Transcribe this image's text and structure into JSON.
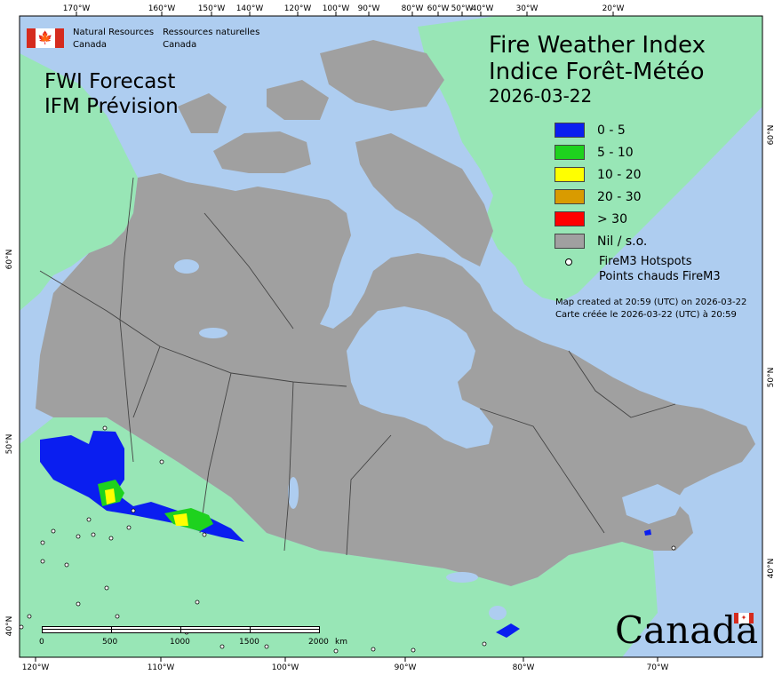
{
  "signature": {
    "en_line1": "Natural Resources",
    "en_line2": "Canada",
    "fr_line1": "Ressources naturelles",
    "fr_line2": "Canada",
    "flag_icon": "maple-leaf-icon"
  },
  "fwi_forecast": {
    "line1": "FWI Forecast",
    "line2": "IFM Prévision"
  },
  "title": {
    "line1": "Fire Weather Index",
    "line2": "Indice Forêt-Météo",
    "date": "2026-03-22"
  },
  "legend": {
    "items": [
      {
        "label": "0 - 5",
        "color": "#0a1ef0"
      },
      {
        "label": "5 - 10",
        "color": "#1ed21e"
      },
      {
        "label": "10 - 20",
        "color": "#ffff00"
      },
      {
        "label": "20 - 30",
        "color": "#d99b00"
      },
      {
        "label": "> 30",
        "color": "#ff0000"
      },
      {
        "label": "Nil / s.o.",
        "color": "#a0a0a0"
      }
    ],
    "hotspots_line1": "FireM3 Hotspots",
    "hotspots_line2": "Points chauds FireM3"
  },
  "created": {
    "en": "Map created at 20:59 (UTC) on 2026-03-22",
    "fr": "Carte créée le 2026-03-22 (UTC) à 20:59"
  },
  "axes": {
    "top": [
      "170°W",
      "160°W",
      "150°W",
      "140°W",
      "120°W",
      "100°W",
      "90°W",
      "80°W",
      "60°W",
      "50°W",
      "40°W",
      "30°W",
      "20°W"
    ],
    "bottom": [
      "120°W",
      "110°W",
      "100°W",
      "90°W",
      "80°W",
      "70°W"
    ],
    "left": [
      "60°N",
      "50°N",
      "40°N"
    ],
    "right": [
      "60°N",
      "50°N",
      "40°N"
    ]
  },
  "scale_bar": {
    "ticks": [
      "0",
      "500",
      "1000",
      "1500",
      "2000"
    ],
    "unit": "km"
  },
  "wordmark": "Canada",
  "colors": {
    "ocean": "#aecdf0",
    "land_other": "#98e6b6",
    "land_nil": "#a0a0a0",
    "boundary": "#444444"
  }
}
